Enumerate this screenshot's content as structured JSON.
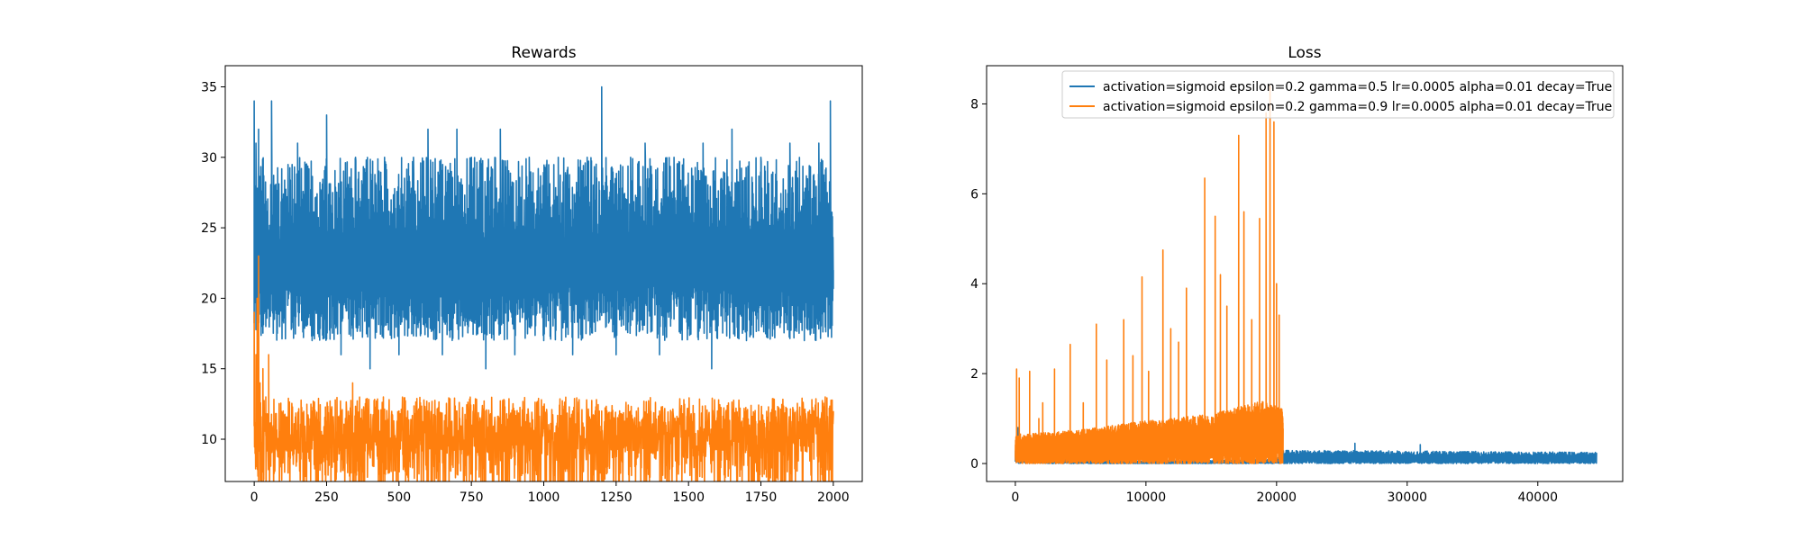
{
  "colors": {
    "series_a": "#1f77b4",
    "series_b": "#ff7f0e"
  },
  "chart_data": [
    {
      "type": "line",
      "title": "Rewards",
      "xlabel": "",
      "ylabel": "",
      "xlim": [
        -100,
        2100
      ],
      "ylim": [
        7,
        36.5
      ],
      "xticks": [
        0,
        250,
        500,
        750,
        1000,
        1250,
        1500,
        1750,
        2000
      ],
      "yticks": [
        10,
        15,
        20,
        25,
        30,
        35
      ],
      "grid": false,
      "series": [
        {
          "color": "#1f77b4",
          "x_range": [
            0,
            2000
          ],
          "envelope": {
            "min": 15,
            "max": 35,
            "typical_low": 17,
            "typical_high": 30
          },
          "samples": [
            [
              0,
              34
            ],
            [
              3,
              20
            ],
            [
              6,
              31
            ],
            [
              10,
              19
            ],
            [
              15,
              32
            ],
            [
              20,
              21
            ],
            [
              30,
              29
            ],
            [
              40,
              18
            ],
            [
              60,
              34
            ],
            [
              100,
              26
            ],
            [
              150,
              31
            ],
            [
              200,
              17
            ],
            [
              250,
              33
            ],
            [
              300,
              16
            ],
            [
              350,
              30
            ],
            [
              400,
              15
            ],
            [
              450,
              30
            ],
            [
              500,
              16
            ],
            [
              550,
              30
            ],
            [
              600,
              32
            ],
            [
              650,
              16
            ],
            [
              700,
              32
            ],
            [
              750,
              30
            ],
            [
              800,
              15
            ],
            [
              850,
              32
            ],
            [
              900,
              16
            ],
            [
              950,
              30
            ],
            [
              1000,
              17
            ],
            [
              1050,
              30
            ],
            [
              1100,
              16
            ],
            [
              1150,
              30
            ],
            [
              1200,
              35
            ],
            [
              1250,
              16
            ],
            [
              1300,
              30
            ],
            [
              1350,
              31
            ],
            [
              1400,
              16
            ],
            [
              1450,
              30
            ],
            [
              1550,
              31
            ],
            [
              1580,
              15
            ],
            [
              1650,
              32
            ],
            [
              1700,
              17
            ],
            [
              1750,
              30
            ],
            [
              1850,
              31
            ],
            [
              1900,
              17
            ],
            [
              1950,
              31
            ],
            [
              1990,
              34
            ],
            [
              2000,
              22
            ]
          ]
        },
        {
          "color": "#ff7f0e",
          "x_range": [
            0,
            2000
          ],
          "envelope": {
            "min": 8,
            "max": 23,
            "typical_low": 9,
            "typical_high": 12
          },
          "samples": [
            [
              0,
              19
            ],
            [
              3,
              9
            ],
            [
              6,
              16
            ],
            [
              10,
              20
            ],
            [
              15,
              23
            ],
            [
              20,
              14
            ],
            [
              25,
              9
            ],
            [
              30,
              15
            ],
            [
              40,
              13
            ],
            [
              50,
              16
            ],
            [
              60,
              10
            ],
            [
              100,
              12
            ],
            [
              150,
              11
            ],
            [
              200,
              12
            ],
            [
              250,
              9
            ],
            [
              300,
              12
            ],
            [
              340,
              14
            ],
            [
              400,
              9
            ],
            [
              500,
              12
            ],
            [
              600,
              12
            ],
            [
              700,
              12
            ],
            [
              800,
              12
            ],
            [
              900,
              12
            ],
            [
              1000,
              12
            ],
            [
              1100,
              12
            ],
            [
              1200,
              12
            ],
            [
              1300,
              12
            ],
            [
              1400,
              12
            ],
            [
              1500,
              12
            ],
            [
              1600,
              12
            ],
            [
              1700,
              12
            ],
            [
              1800,
              12
            ],
            [
              1900,
              12
            ],
            [
              2000,
              12
            ]
          ]
        }
      ]
    },
    {
      "type": "line",
      "title": "Loss",
      "xlabel": "",
      "ylabel": "",
      "xlim": [
        -2200,
        46500
      ],
      "ylim": [
        -0.4,
        8.85
      ],
      "xticks": [
        0,
        10000,
        20000,
        30000,
        40000
      ],
      "yticks": [
        0,
        2,
        4,
        6,
        8
      ],
      "grid": false,
      "legend": {
        "position": "upper right",
        "entries": [
          "activation=sigmoid epsilon=0.2 gamma=0.5 lr=0.0005 alpha=0.01 decay=True",
          "activation=sigmoid epsilon=0.2 gamma=0.9 lr=0.0005 alpha=0.01 decay=True"
        ]
      },
      "series": [
        {
          "color": "#1f77b4",
          "x_range": [
            0,
            44500
          ],
          "envelope_points": [
            [
              0,
              0.35
            ],
            [
              2000,
              0.25
            ],
            [
              5000,
              0.1
            ],
            [
              10000,
              0.05
            ],
            [
              20000,
              0.1
            ],
            [
              20500,
              0.3
            ],
            [
              30000,
              0.28
            ],
            [
              44500,
              0.25
            ]
          ],
          "baseline": 0.0,
          "spikes": [
            [
              200,
              0.8
            ],
            [
              26000,
              0.45
            ],
            [
              31000,
              0.42
            ]
          ]
        },
        {
          "color": "#ff7f0e",
          "x_range": [
            0,
            20500
          ],
          "envelope_points": [
            [
              0,
              0.65
            ],
            [
              5000,
              0.75
            ],
            [
              10000,
              0.95
            ],
            [
              15000,
              1.1
            ],
            [
              19000,
              1.4
            ],
            [
              20500,
              1.2
            ]
          ],
          "baseline": 0.0,
          "spikes": [
            [
              100,
              2.1
            ],
            [
              300,
              1.9
            ],
            [
              1100,
              2.05
            ],
            [
              1800,
              1.0
            ],
            [
              2100,
              1.35
            ],
            [
              3000,
              2.1
            ],
            [
              4200,
              2.65
            ],
            [
              5200,
              1.35
            ],
            [
              6200,
              3.1
            ],
            [
              7000,
              2.3
            ],
            [
              8300,
              3.2
            ],
            [
              9000,
              2.4
            ],
            [
              9700,
              4.15
            ],
            [
              10200,
              2.05
            ],
            [
              11300,
              4.75
            ],
            [
              11900,
              3.0
            ],
            [
              12500,
              2.7
            ],
            [
              13100,
              3.9
            ],
            [
              14500,
              6.35
            ],
            [
              15300,
              5.5
            ],
            [
              15700,
              4.2
            ],
            [
              16200,
              3.5
            ],
            [
              17100,
              7.3
            ],
            [
              17500,
              5.6
            ],
            [
              18100,
              3.2
            ],
            [
              18700,
              5.45
            ],
            [
              19200,
              7.8
            ],
            [
              19500,
              8.4
            ],
            [
              19800,
              7.6
            ],
            [
              20000,
              4.0
            ],
            [
              20200,
              3.3
            ]
          ]
        }
      ]
    }
  ]
}
